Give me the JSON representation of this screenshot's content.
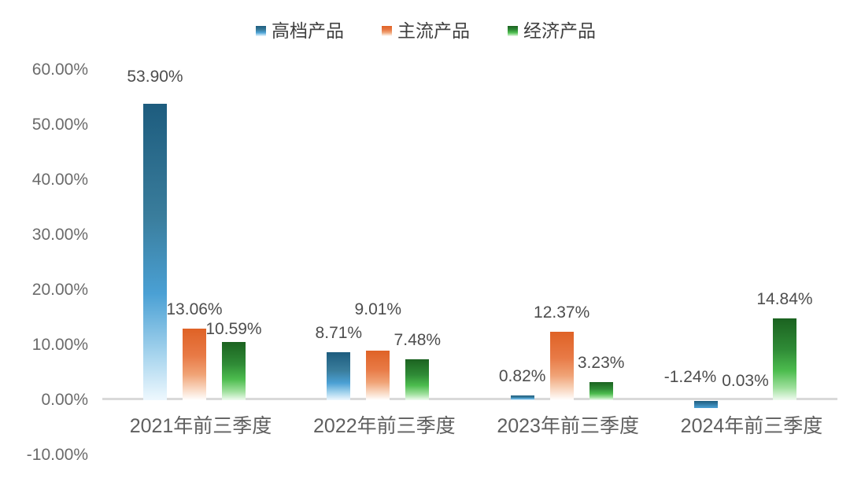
{
  "chart_data": {
    "type": "bar",
    "title": "",
    "xlabel": "",
    "ylabel": "",
    "categories": [
      "2021年前三季度",
      "2022年前三季度",
      "2023年前三季度",
      "2024年前三季度"
    ],
    "series": [
      {
        "name": "高档产品",
        "values": [
          53.9,
          8.71,
          0.82,
          -1.24
        ],
        "labels": [
          "53.90%",
          "8.71%",
          "0.82%",
          "-1.24%"
        ],
        "gradient": [
          "#1d5c7e",
          "#3a7d9c",
          "#4aa0d4",
          "#a8d5ee",
          "#eef8fe"
        ]
      },
      {
        "name": "主流产品",
        "values": [
          13.06,
          9.01,
          12.37,
          0.03
        ],
        "labels": [
          "13.06%",
          "9.01%",
          "12.37%",
          "0.03%"
        ],
        "gradient": [
          "#df6226",
          "#e87a46",
          "#f0a376",
          "#f9d9c3",
          "#ffffff"
        ]
      },
      {
        "name": "经济产品",
        "values": [
          10.59,
          7.48,
          3.23,
          14.84
        ],
        "labels": [
          "10.59%",
          "7.48%",
          "3.23%",
          "14.84%"
        ],
        "gradient": [
          "#1b6220",
          "#2f8b36",
          "#4cbc4e",
          "#9fe09d",
          "#f0fbf0"
        ]
      }
    ],
    "yticks": [
      {
        "label": "60.00%",
        "value": 60
      },
      {
        "label": "50.00%",
        "value": 50
      },
      {
        "label": "40.00%",
        "value": 40
      },
      {
        "label": "30.00%",
        "value": 30
      },
      {
        "label": "20.00%",
        "value": 20
      },
      {
        "label": "10.00%",
        "value": 10
      },
      {
        "label": "0.00%",
        "value": 0
      },
      {
        "label": "-10.00%",
        "value": -10
      }
    ],
    "ylim": [
      -10,
      60
    ],
    "grid": false,
    "legend_position": "top"
  },
  "colors": {
    "background": "#ffffff",
    "axis_line": "#d9d9d9",
    "tick_text": "#6b6b6b",
    "category_text": "#5f5f5f",
    "data_label_text": "#4d4d4d",
    "series_blue": "#2d7fae",
    "series_orange": "#e0662c",
    "series_green": "#2f8b36"
  }
}
